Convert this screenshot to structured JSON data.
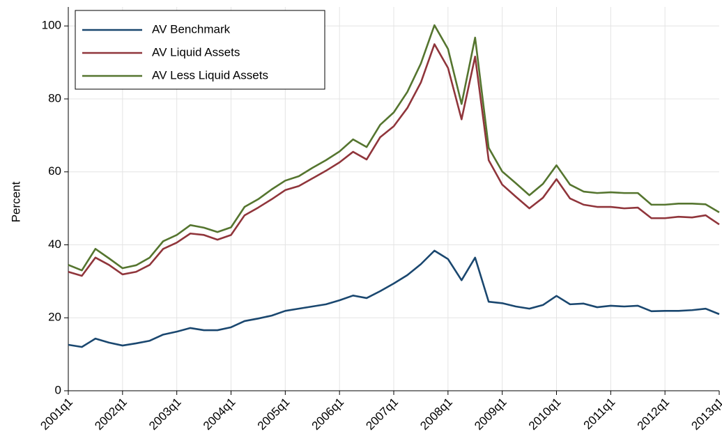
{
  "chart_data": {
    "type": "line",
    "y_label": "Percent",
    "categories": [
      "2001q1",
      null,
      null,
      null,
      "2002q1",
      null,
      null,
      null,
      "2003q1",
      null,
      null,
      null,
      "2004q1",
      null,
      null,
      null,
      "2005q1",
      null,
      null,
      null,
      "2006q1",
      null,
      null,
      null,
      "2007q1",
      null,
      null,
      null,
      "2008q1",
      null,
      null,
      null,
      "2009q1",
      null,
      null,
      null,
      "2010q1",
      null,
      null,
      null,
      "2011q1",
      null,
      null,
      null,
      "2012q1",
      null,
      null,
      null,
      "2013q1"
    ],
    "series": [
      {
        "name": "AV Benchmark",
        "color": "#1a476f",
        "values": [
          12.6,
          12.0,
          14.3,
          13.2,
          12.4,
          13.0,
          13.7,
          15.4,
          16.2,
          17.2,
          16.6,
          16.6,
          17.4,
          19.1,
          19.8,
          20.6,
          21.9,
          22.5,
          23.1,
          23.7,
          24.8,
          26.1,
          25.4,
          27.3,
          29.4,
          31.7,
          34.7,
          38.4,
          36.1,
          30.3,
          36.5,
          24.4,
          24.0,
          23.1,
          22.5,
          23.5,
          26.0,
          23.7,
          23.9,
          22.9,
          23.3,
          23.1,
          23.3,
          21.8,
          21.9,
          21.9,
          22.1,
          22.5,
          21.0
        ]
      },
      {
        "name": "AV Liquid Assets",
        "color": "#90353b",
        "values": [
          32.6,
          31.5,
          36.5,
          34.5,
          31.9,
          32.6,
          34.5,
          38.9,
          40.6,
          43.1,
          42.7,
          41.4,
          42.7,
          48.1,
          50.2,
          52.5,
          55.0,
          56.1,
          58.2,
          60.3,
          62.6,
          65.5,
          63.4,
          69.5,
          72.5,
          77.5,
          84.5,
          95.0,
          88.5,
          74.4,
          91.6,
          63.2,
          56.5,
          53.2,
          50.0,
          52.9,
          58.0,
          52.7,
          51.0,
          50.4,
          50.4,
          50.0,
          50.2,
          47.3,
          47.3,
          47.7,
          47.5,
          48.1,
          45.6
        ]
      },
      {
        "name": "AV Less Liquid Assets",
        "color": "#55752f",
        "values": [
          34.5,
          33.0,
          38.9,
          36.3,
          33.6,
          34.4,
          36.5,
          41.0,
          42.7,
          45.4,
          44.7,
          43.5,
          44.8,
          50.4,
          52.5,
          55.2,
          57.6,
          58.8,
          61.1,
          63.2,
          65.6,
          68.9,
          66.8,
          72.9,
          76.3,
          81.9,
          89.7,
          100.2,
          93.7,
          78.6,
          96.8,
          66.6,
          60.1,
          56.9,
          53.6,
          56.7,
          61.8,
          56.5,
          54.6,
          54.2,
          54.4,
          54.2,
          54.2,
          51.0,
          51.0,
          51.3,
          51.3,
          51.1,
          48.9
        ]
      }
    ],
    "ylim": [
      0,
      105.2
    ],
    "yticks": [
      0,
      20,
      40,
      60,
      80,
      100
    ],
    "grid": true,
    "legend": "upper left"
  }
}
